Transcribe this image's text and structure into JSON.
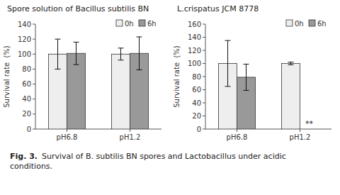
{
  "chart_data": [
    {
      "type": "bar",
      "title": "Spore solution of Bacillus subtilis BN",
      "y_label": "Survival rate  (%)",
      "categories": [
        "pH6.8",
        "pH1.2"
      ],
      "series": [
        {
          "name": "0h",
          "color": "#eeeeee",
          "values": [
            100,
            100
          ],
          "errors": [
            20,
            8
          ]
        },
        {
          "name": "6h",
          "color": "#999999",
          "values": [
            101,
            101
          ],
          "errors": [
            15,
            22
          ]
        }
      ],
      "ylim": [
        0,
        140
      ],
      "yticks": [
        0,
        20,
        40,
        60,
        80,
        100,
        120,
        140
      ],
      "legend": "upper right",
      "grid": false
    },
    {
      "type": "bar",
      "title": "L.crispatus JCM 8778",
      "y_label": "Survival rate  (%)",
      "categories": [
        "pH6.8",
        "pH1.2"
      ],
      "series": [
        {
          "name": "0h",
          "color": "#eeeeee",
          "values": [
            100,
            100
          ],
          "errors": [
            35,
            2
          ]
        },
        {
          "name": "6h",
          "color": "#999999",
          "values": [
            79,
            0
          ],
          "errors": [
            20,
            0
          ]
        }
      ],
      "ylim": [
        0,
        160
      ],
      "yticks": [
        0,
        20,
        40,
        60,
        80,
        100,
        120,
        140,
        160
      ],
      "legend": "upper right",
      "grid": false,
      "annotations": [
        {
          "text": "**",
          "x": "pH1.2",
          "series": "6h"
        }
      ]
    }
  ],
  "caption": {
    "label": "Fig. 3.",
    "text": "Survival of B. subtilis BN spores and Lactobacillus under acidic conditions."
  }
}
